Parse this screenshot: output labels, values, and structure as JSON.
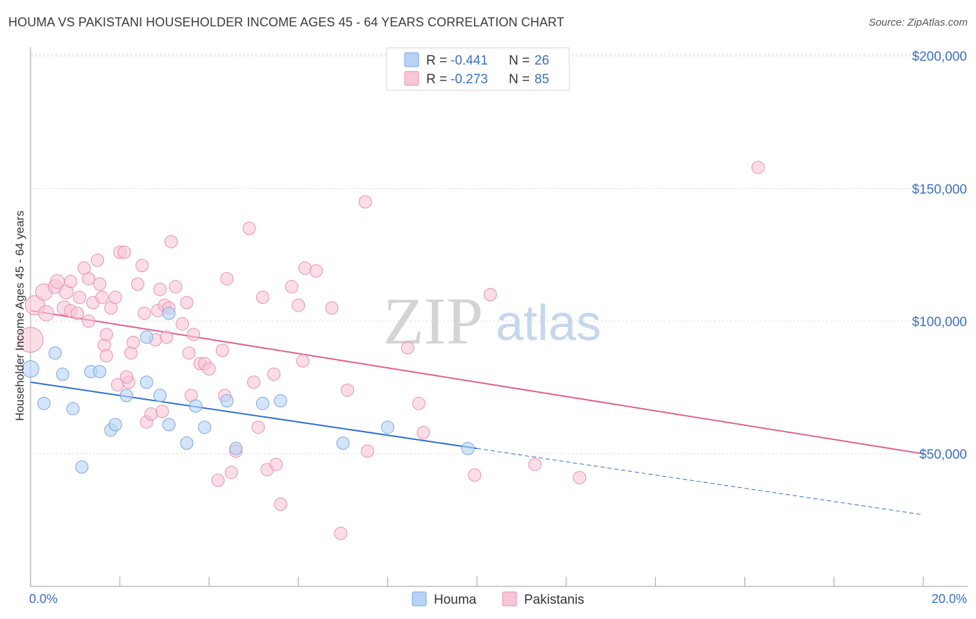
{
  "header": {
    "title": "HOUMA VS PAKISTANI HOUSEHOLDER INCOME AGES 45 - 64 YEARS CORRELATION CHART",
    "source": "Source: ZipAtlas.com"
  },
  "watermark": {
    "zip": "ZIP",
    "atlas": "atlas"
  },
  "legend": {
    "rows": [
      {
        "r_label": "R =",
        "r_value": "-0.441",
        "n_label": "N =",
        "n_value": "26"
      },
      {
        "r_label": "R =",
        "r_value": "-0.273",
        "n_label": "N =",
        "n_value": "85"
      }
    ]
  },
  "bottom_legend": {
    "houma": "Houma",
    "pakistanis": "Pakistanis"
  },
  "colors": {
    "houma_fill": "#b8d2f5",
    "houma_stroke": "#7aa6e0",
    "houma_line": "#2e6fd0",
    "pak_fill": "#f8c6d6",
    "pak_stroke": "#e890ae",
    "pak_line": "#e0608e"
  },
  "chart_data": {
    "type": "scatter",
    "title": "HOUMA VS PAKISTANI HOUSEHOLDER INCOME AGES 45 - 64 YEARS CORRELATION CHART",
    "ylabel": "Householder Income Ages 45 - 64 years",
    "xlabel": "",
    "xlim": [
      0,
      20
    ],
    "ylim": [
      0,
      205000
    ],
    "x_tick_labels": [
      "0.0%",
      "20.0%"
    ],
    "y_ticks": [
      50000,
      100000,
      150000,
      200000
    ],
    "y_tick_labels": [
      "$50,000",
      "$100,000",
      "$150,000",
      "$200,000"
    ],
    "grid": true,
    "series": [
      {
        "name": "Houma",
        "r": -0.441,
        "n": 26,
        "trend": {
          "x0": 0,
          "y0": 77000,
          "x1": 10,
          "y1": 52000,
          "dashed_to_x": 20,
          "dashed_to_y": 27000
        },
        "points": [
          [
            0.0,
            82000,
            12
          ],
          [
            0.3,
            69000,
            9
          ],
          [
            0.55,
            88000,
            9
          ],
          [
            0.72,
            80000,
            9
          ],
          [
            0.95,
            67000,
            9
          ],
          [
            1.15,
            45000,
            9
          ],
          [
            1.35,
            81000,
            9
          ],
          [
            1.55,
            81000,
            9
          ],
          [
            1.8,
            59000,
            9
          ],
          [
            1.9,
            61000,
            9
          ],
          [
            2.15,
            72000,
            9
          ],
          [
            2.6,
            77000,
            9
          ],
          [
            2.9,
            72000,
            9
          ],
          [
            3.1,
            61000,
            9
          ],
          [
            3.5,
            54000,
            9
          ],
          [
            3.9,
            60000,
            9
          ],
          [
            4.4,
            70000,
            9
          ],
          [
            4.6,
            52000,
            9
          ],
          [
            5.2,
            69000,
            9
          ],
          [
            5.6,
            70000,
            9
          ],
          [
            7.0,
            54000,
            9
          ],
          [
            8.0,
            60000,
            9
          ],
          [
            9.8,
            52000,
            9
          ],
          [
            2.6,
            94000,
            9
          ],
          [
            3.7,
            68000,
            9
          ],
          [
            3.1,
            103000,
            9
          ]
        ]
      },
      {
        "name": "Pakistanis",
        "r": -0.273,
        "n": 85,
        "trend": {
          "x0": 0,
          "y0": 104000,
          "x1": 20,
          "y1": 50000
        },
        "points": [
          [
            0.0,
            93000,
            18
          ],
          [
            0.1,
            106000,
            14
          ],
          [
            0.3,
            111000,
            12
          ],
          [
            0.35,
            103000,
            11
          ],
          [
            0.55,
            113000,
            10
          ],
          [
            0.6,
            115000,
            10
          ],
          [
            0.75,
            105000,
            10
          ],
          [
            0.8,
            111000,
            10
          ],
          [
            0.9,
            115000,
            9
          ],
          [
            0.9,
            104000,
            9
          ],
          [
            1.05,
            103000,
            9
          ],
          [
            1.1,
            109000,
            9
          ],
          [
            1.2,
            120000,
            9
          ],
          [
            1.3,
            116000,
            9
          ],
          [
            1.3,
            100000,
            9
          ],
          [
            1.4,
            107000,
            9
          ],
          [
            1.5,
            123000,
            9
          ],
          [
            1.55,
            114000,
            9
          ],
          [
            1.6,
            109000,
            9
          ],
          [
            1.65,
            91000,
            9
          ],
          [
            1.7,
            95000,
            9
          ],
          [
            1.8,
            105000,
            9
          ],
          [
            1.9,
            109000,
            9
          ],
          [
            1.95,
            76000,
            9
          ],
          [
            2.0,
            126000,
            9
          ],
          [
            2.1,
            126000,
            9
          ],
          [
            2.2,
            77000,
            9
          ],
          [
            2.25,
            88000,
            9
          ],
          [
            2.3,
            92000,
            9
          ],
          [
            2.4,
            114000,
            9
          ],
          [
            2.5,
            121000,
            9
          ],
          [
            2.55,
            103000,
            9
          ],
          [
            2.6,
            62000,
            9
          ],
          [
            2.7,
            65000,
            9
          ],
          [
            2.8,
            93000,
            9
          ],
          [
            2.85,
            104000,
            9
          ],
          [
            2.9,
            112000,
            9
          ],
          [
            3.0,
            106000,
            9
          ],
          [
            3.05,
            94000,
            9
          ],
          [
            3.1,
            105000,
            9
          ],
          [
            3.15,
            130000,
            9
          ],
          [
            3.25,
            113000,
            9
          ],
          [
            3.4,
            99000,
            9
          ],
          [
            3.5,
            107000,
            9
          ],
          [
            3.55,
            88000,
            9
          ],
          [
            3.6,
            72000,
            9
          ],
          [
            3.8,
            84000,
            9
          ],
          [
            3.9,
            84000,
            9
          ],
          [
            4.0,
            82000,
            9
          ],
          [
            4.2,
            40000,
            9
          ],
          [
            4.3,
            89000,
            9
          ],
          [
            4.35,
            72000,
            9
          ],
          [
            4.4,
            116000,
            9
          ],
          [
            4.5,
            43000,
            9
          ],
          [
            4.9,
            135000,
            9
          ],
          [
            5.0,
            77000,
            9
          ],
          [
            5.1,
            60000,
            9
          ],
          [
            5.2,
            109000,
            9
          ],
          [
            5.3,
            44000,
            9
          ],
          [
            5.45,
            80000,
            9
          ],
          [
            5.5,
            46000,
            9
          ],
          [
            5.6,
            31000,
            9
          ],
          [
            5.85,
            113000,
            9
          ],
          [
            6.0,
            106000,
            9
          ],
          [
            6.1,
            85000,
            9
          ],
          [
            6.15,
            120000,
            9
          ],
          [
            6.4,
            119000,
            9
          ],
          [
            6.75,
            105000,
            9
          ],
          [
            6.95,
            20000,
            9
          ],
          [
            7.1,
            74000,
            9
          ],
          [
            7.5,
            145000,
            9
          ],
          [
            7.55,
            51000,
            9
          ],
          [
            8.45,
            90000,
            9
          ],
          [
            8.7,
            69000,
            9
          ],
          [
            8.8,
            58000,
            9
          ],
          [
            9.95,
            42000,
            9
          ],
          [
            10.3,
            110000,
            9
          ],
          [
            11.3,
            46000,
            9
          ],
          [
            12.3,
            41000,
            9
          ],
          [
            16.3,
            158000,
            9
          ],
          [
            4.6,
            51000,
            9
          ],
          [
            2.95,
            66000,
            9
          ],
          [
            1.7,
            87000,
            9
          ],
          [
            2.15,
            79000,
            9
          ],
          [
            3.65,
            95000,
            9
          ]
        ]
      }
    ]
  }
}
